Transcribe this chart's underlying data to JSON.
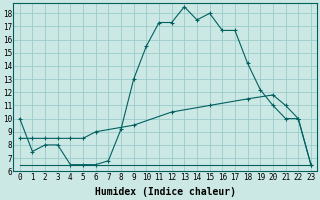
{
  "title": "",
  "xlabel": "Humidex (Indice chaleur)",
  "bg_color": "#cce8e4",
  "line_color": "#006060",
  "grid_color": "#99cccc",
  "xlim": [
    -0.5,
    23.5
  ],
  "ylim": [
    6,
    18.8
  ],
  "xticks": [
    0,
    1,
    2,
    3,
    4,
    5,
    6,
    7,
    8,
    9,
    10,
    11,
    12,
    13,
    14,
    15,
    16,
    17,
    18,
    19,
    20,
    21,
    22,
    23
  ],
  "yticks": [
    6,
    7,
    8,
    9,
    10,
    11,
    12,
    13,
    14,
    15,
    16,
    17,
    18
  ],
  "series1_x": [
    0,
    1,
    2,
    3,
    4,
    5,
    6,
    7,
    8,
    9,
    10,
    11,
    12,
    13,
    14,
    15,
    16,
    17,
    18,
    19,
    20,
    21,
    22,
    23
  ],
  "series1_y": [
    10,
    7.5,
    8,
    8,
    6.5,
    6.5,
    6.5,
    6.8,
    9.2,
    13,
    15.5,
    17.3,
    17.3,
    18.5,
    17.5,
    18.0,
    16.7,
    16.7,
    14.2,
    12.2,
    11.0,
    10.0,
    10.0,
    6.5
  ],
  "series2_x": [
    0,
    1,
    2,
    3,
    4,
    5,
    6,
    7,
    8,
    9,
    10,
    11,
    12,
    13,
    14,
    15,
    16,
    17,
    18,
    19,
    20,
    21,
    22,
    23
  ],
  "series2_y": [
    6.5,
    6.5,
    6.5,
    6.5,
    6.5,
    6.5,
    6.5,
    6.5,
    6.5,
    6.5,
    6.5,
    6.5,
    6.5,
    6.5,
    6.5,
    6.5,
    6.5,
    6.5,
    6.5,
    6.5,
    6.5,
    6.5,
    6.5,
    6.5
  ],
  "series3_x": [
    0,
    1,
    2,
    3,
    4,
    5,
    6,
    9,
    12,
    15,
    18,
    20,
    21,
    22,
    23
  ],
  "series3_y": [
    8.5,
    8.5,
    8.5,
    8.5,
    8.5,
    8.5,
    9.0,
    9.5,
    10.5,
    11.0,
    11.5,
    11.8,
    11.0,
    10.0,
    6.5
  ],
  "xlabel_fontsize": 7,
  "tick_fontsize": 5.5
}
